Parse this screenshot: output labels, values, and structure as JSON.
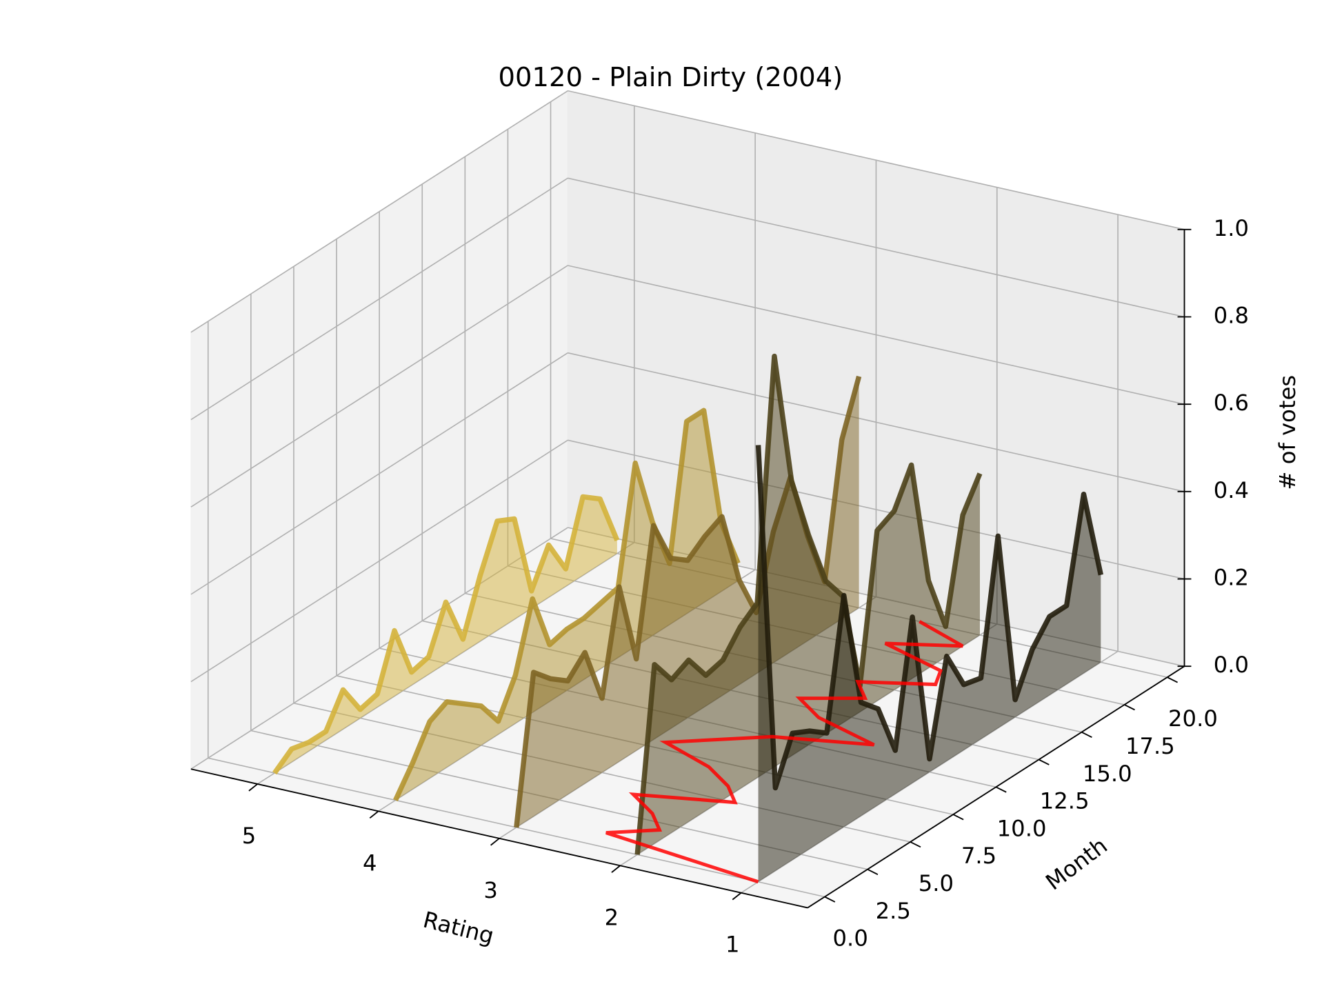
{
  "chart_data": {
    "type": "line3d",
    "title": "00120 - Plain Dirty (2004)",
    "xlabel": "Rating",
    "ylabel": "Month",
    "zlabel": "# of votes",
    "xlim": [
      0.45,
      5.55
    ],
    "ylim": [
      -1,
      21
    ],
    "zlim": [
      0,
      1
    ],
    "xticks": [
      1,
      2,
      3,
      4,
      5
    ],
    "yticks": [
      {
        "value": 0,
        "label": "0.0"
      },
      2.5,
      {
        "value": 5,
        "label": "5.0"
      },
      7.5,
      {
        "value": 10,
        "label": "10.0"
      },
      12.5,
      {
        "value": 15,
        "label": "15.0"
      },
      17.5,
      {
        "value": 20,
        "label": "20.0"
      }
    ],
    "zticks": [
      {
        "value": 0,
        "label": "0.0"
      },
      0.2,
      0.4,
      0.6,
      0.8,
      {
        "value": 1,
        "label": "1.0"
      }
    ],
    "grid": true,
    "months": [
      0,
      1,
      2,
      3,
      4,
      5,
      6,
      7,
      8,
      9,
      10,
      11,
      12,
      13,
      14,
      15,
      16,
      17,
      18,
      19,
      20
    ],
    "series": [
      {
        "rating": 5,
        "color": "#d4b23b",
        "values": [
          0,
          0.03,
          0.02,
          0.02,
          0.09,
          0.02,
          0.03,
          0.15,
          0.03,
          0.04,
          0.14,
          0.03,
          0.15,
          0.25,
          0.23,
          0.04,
          0.12,
          0.04,
          0.18,
          0.15,
          0.03
        ]
      },
      {
        "rating": 4,
        "color": "#b2932f",
        "values": [
          0,
          0.06,
          0.13,
          0.15,
          0.12,
          0.09,
          0.03,
          0.11,
          0.26,
          0.13,
          0.14,
          0.14,
          0.15,
          0.16,
          0.42,
          0.26,
          0.14,
          0.44,
          0.44,
          0.16,
          0.04
        ]
      },
      {
        "rating": 3,
        "color": "#7d6423",
        "values": [
          0,
          0.33,
          0.29,
          0.26,
          0.3,
          0.17,
          0.4,
          0.21,
          0.49,
          0.39,
          0.36,
          0.39,
          0.41,
          0.24,
          0.14,
          0.3,
          0.4,
          0.24,
          0.11,
          0.41,
          0.53
        ]
      },
      {
        "rating": 2,
        "color": "#4d411a",
        "values": [
          0,
          0.41,
          0.35,
          0.37,
          0.31,
          0.32,
          0.37,
          0.4,
          0.94,
          0.63,
          0.48,
          0.35,
          0.29,
          0.06,
          0.39,
          0.41,
          0.49,
          0.2,
          0.07,
          0.3,
          0.37
        ]
      },
      {
        "rating": 1,
        "color": "#221d0c",
        "values": [
          1.0,
          0.19,
          0.29,
          0.27,
          0.24,
          0.53,
          0.26,
          0.22,
          0.1,
          0.38,
          0.03,
          0.24,
          0.15,
          0.14,
          0.44,
          0.04,
          0.13,
          0.18,
          0.18,
          0.41,
          0.2
        ]
      }
    ],
    "trend": {
      "color": "#ff0000",
      "values": [
        1.0,
        2.4,
        2.1,
        2.3,
        2.6,
        1.9,
        2.1,
        2.4,
        2.9,
        2.6,
        2.3,
        1.6,
        2.2,
        2.5,
        2.1,
        2.3,
        1.8,
        1.9,
        2.5,
        2.0,
        2.5
      ]
    }
  }
}
